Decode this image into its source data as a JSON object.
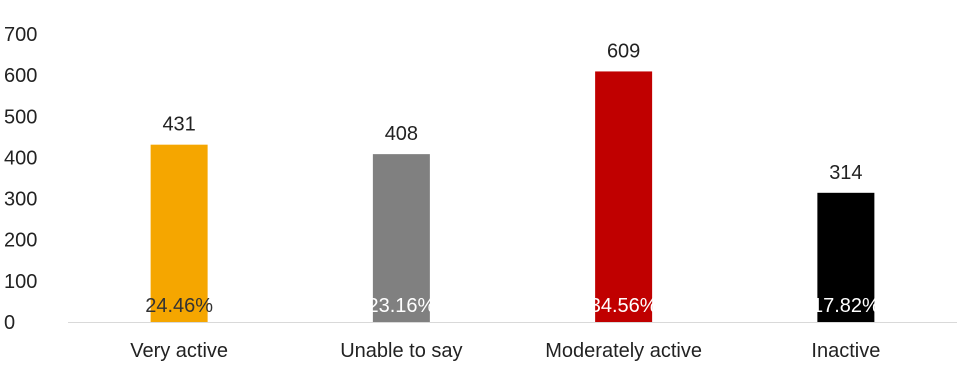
{
  "chart_data": {
    "type": "bar",
    "categories": [
      "Very active",
      "Unable to say",
      "Moderately active",
      "Inactive"
    ],
    "values": [
      431,
      408,
      609,
      314
    ],
    "percent_labels": [
      "24.46%",
      "23.16%",
      "34.56%",
      "17.82%"
    ],
    "bar_colors": [
      "#F5A600",
      "#808080",
      "#C00000",
      "#000000"
    ],
    "percent_label_colors": [
      "#333333",
      "#ffffff",
      "#ffffff",
      "#ffffff"
    ],
    "ylim": [
      0,
      700
    ],
    "yticks": [
      0,
      100,
      200,
      300,
      400,
      500,
      600,
      700
    ],
    "title": "",
    "xlabel": "",
    "ylabel": "",
    "grid": false,
    "legend": "none"
  }
}
